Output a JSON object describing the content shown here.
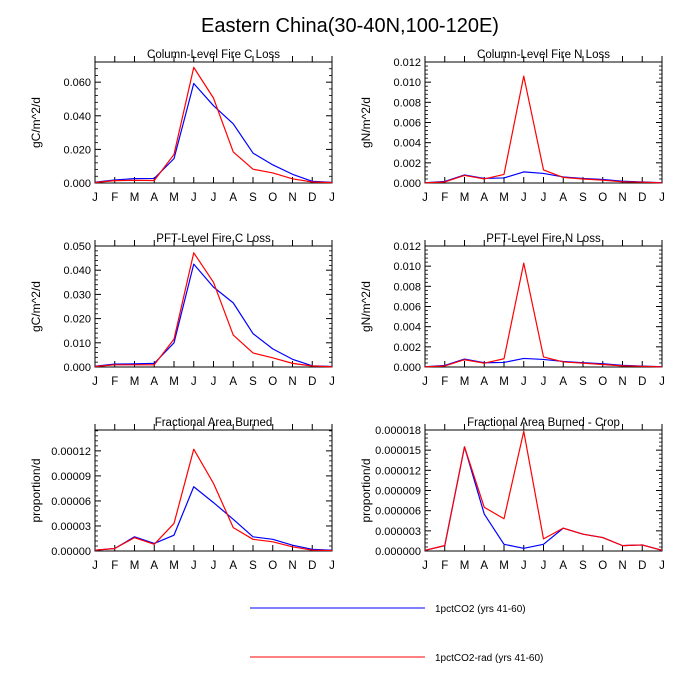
{
  "figure_title": "Eastern China(30-40N,100-120E)",
  "legend": [
    {
      "name": "1pctCO2 (yrs 41-60)",
      "color": "#0000ff"
    },
    {
      "name": "1pctCO2-rad (yrs 41-60)",
      "color": "#ff0000"
    }
  ],
  "chart_data": [
    {
      "type": "line",
      "title": "Column-Level Fire C Loss",
      "ylabel": "gC/m^2/d",
      "categories": [
        "J",
        "F",
        "M",
        "A",
        "M",
        "J",
        "J",
        "A",
        "S",
        "O",
        "N",
        "D",
        "J"
      ],
      "ylim": [
        0,
        0.072
      ],
      "yticks": [
        "0.000",
        "0.020",
        "0.040",
        "0.060"
      ],
      "grid": false,
      "series": [
        {
          "name": "1pctCO2 (yrs 41-60)",
          "color": "#0000ff",
          "values": [
            0.0005,
            0.0018,
            0.0026,
            0.0027,
            0.0145,
            0.0592,
            0.046,
            0.0352,
            0.0178,
            0.0108,
            0.0052,
            0.001,
            0.0004
          ]
        },
        {
          "name": "1pctCO2-rad (yrs 41-60)",
          "color": "#ff0000",
          "values": [
            0.0003,
            0.0014,
            0.0016,
            0.0015,
            0.017,
            0.0688,
            0.0505,
            0.0185,
            0.0082,
            0.006,
            0.0025,
            0.0006,
            0.0002
          ]
        }
      ]
    },
    {
      "type": "line",
      "title": "Column-Level Fire N Loss",
      "ylabel": "gN/m^2/d",
      "categories": [
        "J",
        "F",
        "M",
        "A",
        "M",
        "J",
        "J",
        "A",
        "S",
        "O",
        "N",
        "D",
        "J"
      ],
      "ylim": [
        0,
        0.012
      ],
      "yticks": [
        "0.000",
        "0.002",
        "0.004",
        "0.006",
        "0.008",
        "0.010",
        "0.012"
      ],
      "grid": false,
      "series": [
        {
          "name": "1pctCO2 (yrs 41-60)",
          "color": "#0000ff",
          "values": [
            3e-05,
            0.00015,
            0.0008,
            0.00045,
            0.0005,
            0.0011,
            0.00095,
            0.0006,
            0.00045,
            0.00035,
            0.00018,
            0.0001,
            3e-05
          ]
        },
        {
          "name": "1pctCO2-rad (yrs 41-60)",
          "color": "#ff0000",
          "values": [
            2e-05,
            0.0001,
            0.00075,
            0.0004,
            0.00085,
            0.0106,
            0.0013,
            0.00055,
            0.0004,
            0.00028,
            0.00012,
            8e-05,
            2e-05
          ]
        }
      ]
    },
    {
      "type": "line",
      "title": "PFT-Level Fire C Loss",
      "ylabel": "gC/m^2/d",
      "categories": [
        "J",
        "F",
        "M",
        "A",
        "M",
        "J",
        "J",
        "A",
        "S",
        "O",
        "N",
        "D",
        "J"
      ],
      "ylim": [
        0,
        0.05
      ],
      "yticks": [
        "0.000",
        "0.010",
        "0.020",
        "0.030",
        "0.040",
        "0.050"
      ],
      "grid": false,
      "series": [
        {
          "name": "1pctCO2 (yrs 41-60)",
          "color": "#0000ff",
          "values": [
            0.0003,
            0.0012,
            0.0013,
            0.0015,
            0.01,
            0.0425,
            0.033,
            0.0265,
            0.0138,
            0.0075,
            0.0032,
            0.0005,
            0.0002
          ]
        },
        {
          "name": "1pctCO2-rad (yrs 41-60)",
          "color": "#ff0000",
          "values": [
            0.0002,
            0.0009,
            0.0009,
            0.0009,
            0.0115,
            0.0472,
            0.035,
            0.0132,
            0.0058,
            0.0038,
            0.0015,
            0.0004,
            0.0001
          ]
        }
      ]
    },
    {
      "type": "line",
      "title": "PFT-Level Fire N Loss",
      "ylabel": "gN/m^2/d",
      "categories": [
        "J",
        "F",
        "M",
        "A",
        "M",
        "J",
        "J",
        "A",
        "S",
        "O",
        "N",
        "D",
        "J"
      ],
      "ylim": [
        0,
        0.012
      ],
      "yticks": [
        "0.000",
        "0.002",
        "0.004",
        "0.006",
        "0.008",
        "0.010",
        "0.012"
      ],
      "grid": false,
      "series": [
        {
          "name": "1pctCO2 (yrs 41-60)",
          "color": "#0000ff",
          "values": [
            3e-05,
            0.00015,
            0.00078,
            0.00042,
            0.00045,
            0.00085,
            0.00075,
            0.00055,
            0.00042,
            0.00032,
            0.00016,
            9e-05,
            3e-05
          ]
        },
        {
          "name": "1pctCO2-rad (yrs 41-60)",
          "color": "#ff0000",
          "values": [
            2e-05,
            0.0001,
            0.00072,
            0.00038,
            0.00082,
            0.0103,
            0.001,
            0.0005,
            0.00038,
            0.00025,
            0.00011,
            7e-05,
            2e-05
          ]
        }
      ]
    },
    {
      "type": "line",
      "title": "Fractional Area Burned",
      "ylabel": "proportion/d",
      "categories": [
        "J",
        "F",
        "M",
        "A",
        "M",
        "J",
        "J",
        "A",
        "S",
        "O",
        "N",
        "D",
        "J"
      ],
      "ylim": [
        0,
        0.000145
      ],
      "yticks": [
        "0.00000",
        "0.00003",
        "0.00006",
        "0.00009",
        "0.00012"
      ],
      "grid": false,
      "series": [
        {
          "name": "1pctCO2 (yrs 41-60)",
          "color": "#0000ff",
          "values": [
            1e-06,
            3e-06,
            1.7e-05,
            9e-06,
            1.9e-05,
            7.7e-05,
            5.8e-05,
            3.8e-05,
            1.7e-05,
            1.4e-05,
            7e-06,
            2e-06,
            1e-06
          ]
        },
        {
          "name": "1pctCO2-rad (yrs 41-60)",
          "color": "#ff0000",
          "values": [
            1e-06,
            3e-06,
            1.6e-05,
            8e-06,
            3.3e-05,
            0.000122,
            8.1e-05,
            2.8e-05,
            1.4e-05,
            1.1e-05,
            5e-06,
            1e-06,
            5e-07
          ]
        }
      ]
    },
    {
      "type": "line",
      "title": "Fractional Area Burned - Crop",
      "ylabel": "proportion/d",
      "categories": [
        "J",
        "F",
        "M",
        "A",
        "M",
        "J",
        "J",
        "A",
        "S",
        "O",
        "N",
        "D",
        "J"
      ],
      "ylim": [
        0,
        1.8e-05
      ],
      "yticks": [
        "0.000000",
        "0.000003",
        "0.000006",
        "0.000009",
        "0.000012",
        "0.000015",
        "0.000018"
      ],
      "grid": false,
      "series": [
        {
          "name": "1pctCO2 (yrs 41-60)",
          "color": "#0000ff",
          "values": [
            1e-07,
            8e-07,
            1.55e-05,
            5.5e-06,
            1e-06,
            4e-07,
            1e-06,
            3.4e-06,
            2.5e-06,
            2e-06,
            8e-07,
            9e-07,
            1e-07
          ]
        },
        {
          "name": "1pctCO2-rad (yrs 41-60)",
          "color": "#ff0000",
          "values": [
            1e-07,
            8e-07,
            1.55e-05,
            6.5e-06,
            4.8e-06,
            1.78e-05,
            1.8e-06,
            3.4e-06,
            2.5e-06,
            2e-06,
            8e-07,
            9e-07,
            1e-07
          ]
        }
      ]
    }
  ]
}
